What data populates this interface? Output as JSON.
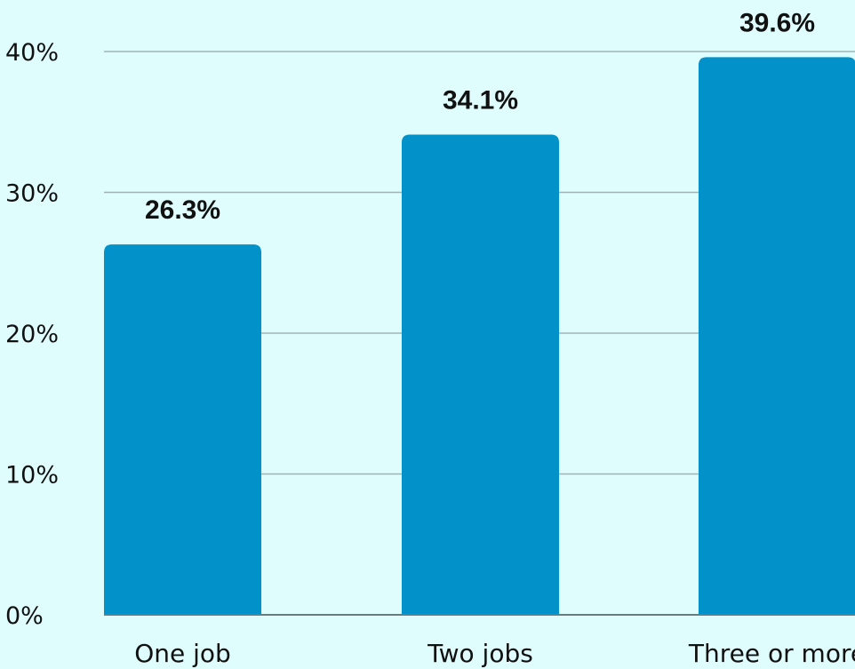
{
  "chart_data": {
    "type": "bar",
    "categories": [
      "One job",
      "Two jobs",
      "Three or more"
    ],
    "values": [
      26.3,
      34.1,
      39.6
    ],
    "value_labels": [
      "26.3%",
      "34.1%",
      "39.6%"
    ],
    "yticks": [
      0,
      10,
      20,
      30,
      40
    ],
    "ytick_labels": [
      "0%",
      "10%",
      "20%",
      "30%",
      "40%"
    ],
    "ylim": [
      0,
      40
    ],
    "grid": true,
    "title": "",
    "xlabel": "",
    "ylabel": ""
  },
  "colors": {
    "background": "#e0fdfe",
    "bar": "#0291c9",
    "grid": "#9fb3b5",
    "axis": "#6b7b7c",
    "text": "#111111"
  }
}
